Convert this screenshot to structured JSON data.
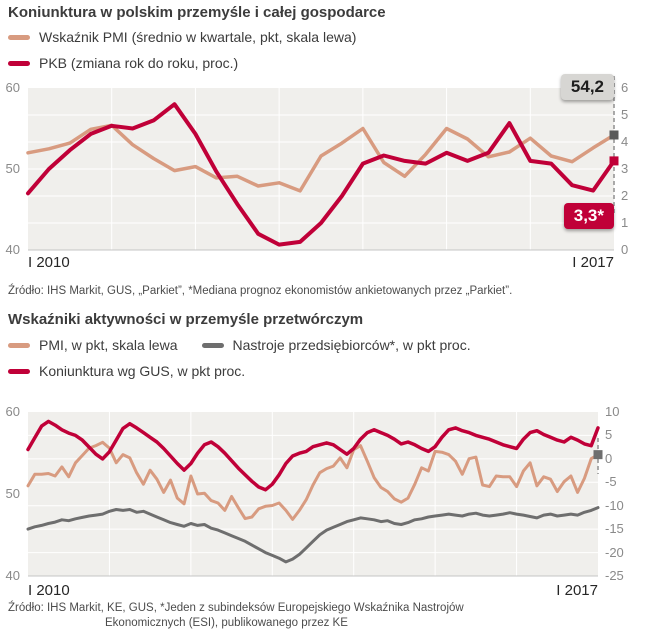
{
  "colors": {
    "pmi": "#d89b80",
    "gdp": "#c00038",
    "gus": "#c00038",
    "sentiment": "#6e6e6e",
    "plot_bg": "#f0efec",
    "grid": "#ffffff"
  },
  "section1": {
    "title": "Koniunktura w polskim przemyśle i całej gospodarce",
    "legend": [
      {
        "label": "Wskaźnik PMI (średnio w kwartale, pkt, skala lewa)",
        "color": "#d89b80"
      },
      {
        "label": "PKB (zmiana rok do roku, proc.)",
        "color": "#c00038"
      }
    ],
    "x_labels": {
      "start": "I 2010",
      "end": "I 2017"
    },
    "badges": {
      "pmi": "54,2",
      "gdp": "3,3*"
    },
    "source": "Źródło: IHS Markit, GUS, „Parkiet”, *Mediana prognoz ekonomistów ankietowanych przez „Parkiet”."
  },
  "section2": {
    "title": "Wskaźniki aktywności w przemyśle przetwórczym",
    "legend": [
      {
        "label": "PMI, w pkt, skala lewa",
        "color": "#d89b80"
      },
      {
        "label": "Nastroje przedsiębiorców*, w pkt proc.",
        "color": "#6e6e6e"
      },
      {
        "label": "Koniunktura wg GUS, w pkt proc.",
        "color": "#c00038"
      }
    ],
    "x_labels": {
      "start": "I 2010",
      "end": "I 2017"
    },
    "source_line1": "Źródło: IHS Markit, KE, GUS, *Jeden z subindeksów Europejskiego Wskaźnika Nastrojów",
    "source_line2": "Ekonomicznych (ESI), publikowanego przez KE"
  },
  "chart_data": [
    {
      "type": "line",
      "title": "Koniunktura w polskim przemyśle i całej gospodarce",
      "frequency": "quarterly",
      "x_start": "I 2010",
      "x_end": "I 2017",
      "points_per_year": 4,
      "left_axis": {
        "label": "PMI, pkt",
        "range": [
          40,
          60
        ],
        "ticks": [
          "60",
          "50",
          "40"
        ]
      },
      "right_axis": {
        "label": "PKB r/r, proc.",
        "range": [
          0,
          6
        ],
        "ticks": [
          "6",
          "5",
          "4",
          "3",
          "2",
          "1",
          "0"
        ]
      },
      "end_dash": [
        -12,
        126
      ],
      "annotations": [
        {
          "label": "54,2",
          "series": "Wskaźnik PMI",
          "note": "średnia w kwartale"
        },
        {
          "label": "3,3*",
          "series": "PKB",
          "note": "mediana prognoz ekonomistów"
        }
      ],
      "series": [
        {
          "name": "Wskaźnik PMI (średnio w kwartale, pkt)",
          "axis": "left",
          "color": "#d89b80",
          "stroke_width": 3.5,
          "end_marker": "#5a5a5a",
          "values": [
            52.0,
            52.5,
            53.2,
            54.9,
            55.4,
            53.0,
            51.3,
            49.8,
            50.3,
            48.9,
            49.1,
            47.9,
            48.3,
            47.3,
            51.6,
            53.2,
            55.0,
            50.8,
            49.1,
            51.8,
            55.0,
            53.7,
            51.5,
            52.1,
            53.8,
            51.6,
            50.9,
            52.6,
            54.2
          ]
        },
        {
          "name": "PKB (zmiana rok do roku, proc.)",
          "axis": "right",
          "color": "#c00038",
          "stroke_width": 4,
          "end_marker": "#c00038",
          "values": [
            2.1,
            3.0,
            3.7,
            4.3,
            4.6,
            4.5,
            4.8,
            5.4,
            4.3,
            2.9,
            1.7,
            0.6,
            0.2,
            0.3,
            1.0,
            2.0,
            3.2,
            3.5,
            3.3,
            3.2,
            3.6,
            3.3,
            3.6,
            4.7,
            3.3,
            3.2,
            2.4,
            2.2,
            3.3
          ]
        }
      ]
    },
    {
      "type": "line",
      "title": "Wskaźniki aktywności w przemyśle przetwórczym",
      "frequency": "monthly",
      "x_start": "I 2010",
      "x_end": "I 2017",
      "points_per_year": 12,
      "left_axis": {
        "label": "PMI, pkt",
        "range": [
          40,
          60
        ],
        "ticks": [
          "60",
          "50",
          "40"
        ]
      },
      "right_axis": {
        "label": "pkt proc.",
        "range": [
          -25,
          10
        ],
        "ticks": [
          "10",
          "5",
          "0",
          "-5",
          "-10",
          "-15",
          "-20",
          "-25"
        ]
      },
      "end_dash": [
        26,
        62
      ],
      "series": [
        {
          "name": "PMI, w pkt, skala lewa",
          "axis": "left",
          "color": "#d89b80",
          "stroke_width": 3,
          "end_marker": "#6e6e6e",
          "values": [
            51.0,
            52.4,
            52.4,
            52.5,
            52.2,
            53.3,
            52.1,
            53.8,
            54.7,
            55.6,
            55.9,
            56.3,
            55.6,
            53.8,
            54.8,
            54.4,
            52.6,
            51.2,
            52.9,
            51.8,
            50.2,
            51.7,
            49.5,
            48.8,
            52.2,
            50.0,
            50.1,
            49.2,
            48.9,
            48.0,
            49.7,
            48.3,
            47.0,
            47.2,
            48.2,
            48.5,
            48.6,
            48.9,
            48.0,
            46.9,
            48.0,
            49.3,
            51.1,
            52.6,
            53.1,
            53.4,
            54.4,
            53.2,
            55.4,
            55.9,
            54.0,
            52.0,
            50.8,
            50.3,
            49.4,
            49.0,
            49.5,
            51.2,
            53.2,
            52.8,
            55.2,
            55.1,
            54.8,
            54.0,
            52.4,
            54.3,
            54.5,
            51.1,
            50.9,
            52.2,
            52.1,
            52.1,
            50.9,
            52.8,
            53.8,
            51.0,
            52.1,
            51.8,
            50.3,
            51.5,
            52.2,
            50.2,
            51.9,
            54.3,
            54.8
          ]
        },
        {
          "name": "Nastroje przedsiębiorców*, w pkt proc.",
          "axis": "right",
          "color": "#6e6e6e",
          "stroke_width": 3,
          "values": [
            -15.0,
            -14.5,
            -14.2,
            -13.8,
            -13.5,
            -13.0,
            -13.2,
            -12.8,
            -12.5,
            -12.2,
            -12.0,
            -11.8,
            -11.2,
            -10.8,
            -11.0,
            -10.8,
            -11.4,
            -11.2,
            -11.8,
            -12.4,
            -13.0,
            -13.6,
            -14.0,
            -14.4,
            -13.8,
            -14.2,
            -14.0,
            -14.8,
            -15.2,
            -15.8,
            -16.4,
            -17.0,
            -17.6,
            -18.4,
            -19.2,
            -20.0,
            -20.6,
            -21.2,
            -22.0,
            -21.4,
            -20.4,
            -19.0,
            -17.6,
            -16.2,
            -15.2,
            -14.6,
            -14.0,
            -13.4,
            -13.0,
            -12.6,
            -12.8,
            -13.0,
            -13.4,
            -13.2,
            -13.8,
            -14.0,
            -13.6,
            -13.0,
            -12.8,
            -12.4,
            -12.2,
            -12.0,
            -11.8,
            -12.0,
            -12.2,
            -11.8,
            -11.6,
            -12.0,
            -12.2,
            -12.0,
            -11.8,
            -11.5,
            -11.8,
            -12.0,
            -12.3,
            -12.6,
            -12.0,
            -11.8,
            -12.2,
            -12.0,
            -11.8,
            -12.0,
            -11.4,
            -11.0,
            -10.4
          ]
        },
        {
          "name": "Koniunktura wg GUS, w pkt proc.",
          "axis": "right",
          "color": "#c00038",
          "stroke_width": 3.5,
          "values": [
            2.0,
            4.5,
            7.0,
            8.0,
            7.2,
            6.2,
            5.5,
            5.0,
            4.0,
            2.5,
            1.0,
            0.0,
            1.5,
            4.0,
            6.5,
            7.5,
            6.6,
            5.6,
            4.6,
            3.6,
            2.2,
            0.6,
            -1.0,
            -2.4,
            -1.0,
            1.2,
            3.0,
            3.6,
            2.6,
            1.2,
            -0.4,
            -2.0,
            -3.4,
            -4.8,
            -6.0,
            -6.6,
            -5.4,
            -3.4,
            -1.0,
            0.6,
            1.2,
            1.6,
            2.6,
            3.0,
            3.4,
            3.0,
            2.0,
            1.0,
            2.2,
            4.2,
            5.6,
            6.2,
            5.6,
            5.0,
            4.2,
            3.2,
            3.6,
            3.0,
            2.2,
            1.6,
            2.6,
            4.6,
            6.2,
            6.6,
            6.0,
            5.6,
            5.0,
            4.6,
            4.2,
            3.6,
            3.0,
            2.6,
            2.2,
            4.2,
            5.6,
            6.0,
            5.2,
            4.6,
            4.0,
            3.6,
            4.6,
            4.0,
            3.2,
            2.8,
            6.6
          ]
        }
      ]
    }
  ]
}
